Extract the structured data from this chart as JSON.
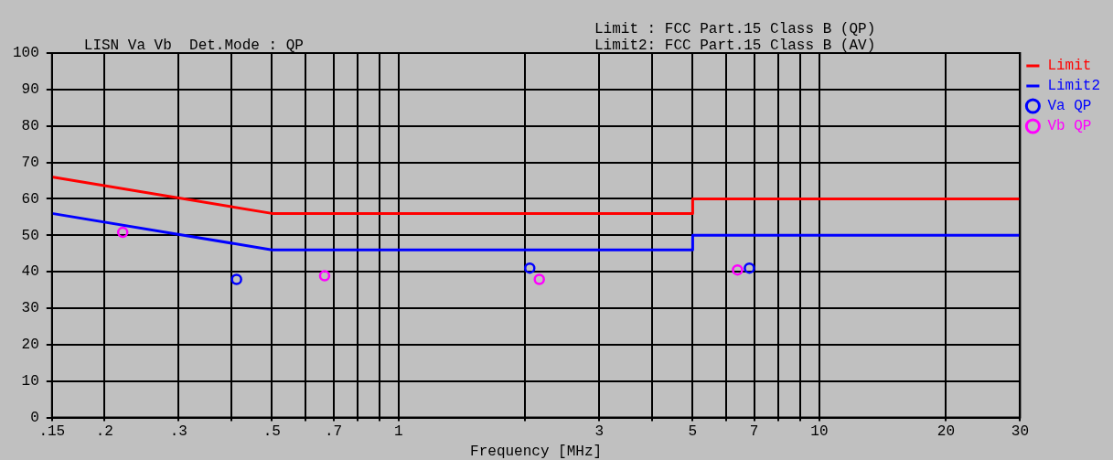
{
  "chart_data": {
    "type": "line",
    "title": "LISN Va Vb  Det.Mode : QP",
    "annotations": [
      "Limit : FCC Part.15 Class B (QP)",
      "Limit2: FCC Part.15 Class B (AV)"
    ],
    "xlabel": "Frequency [MHz]",
    "log": "x",
    "grid": true,
    "legend": "right",
    "xlim": [
      0.15,
      30
    ],
    "xticks": [
      {
        "value": 0.15,
        "label": ".15"
      },
      {
        "value": 0.2,
        "label": ".2"
      },
      {
        "value": 0.3,
        "label": ".3"
      },
      {
        "value": 0.4,
        "label": null
      },
      {
        "value": 0.5,
        "label": ".5"
      },
      {
        "value": 0.6,
        "label": null
      },
      {
        "value": 0.7,
        "label": ".7"
      },
      {
        "value": 0.8,
        "label": null
      },
      {
        "value": 0.9,
        "label": null
      },
      1,
      {
        "value": 2,
        "label": null
      },
      3,
      {
        "value": 4,
        "label": null
      },
      5,
      {
        "value": 6,
        "label": null
      },
      7,
      {
        "value": 8,
        "label": null
      },
      {
        "value": 9,
        "label": null
      },
      10,
      20,
      30
    ],
    "ylim": [
      0,
      100
    ],
    "yticks": [
      0,
      10,
      20,
      30,
      40,
      50,
      60,
      70,
      80,
      90,
      100
    ],
    "series": [
      {
        "name": "Limit",
        "marker": "none",
        "color": "#ff0000",
        "x": [
          0.15,
          0.5,
          5,
          5,
          30
        ],
        "values": [
          66,
          56,
          56,
          60,
          60
        ]
      },
      {
        "name": "Limit2",
        "marker": "none",
        "color": "#0000ff",
        "x": [
          0.15,
          0.5,
          5,
          5,
          30
        ],
        "values": [
          56,
          46,
          46,
          50,
          50
        ]
      },
      {
        "name": "Va QP",
        "type": "scatter",
        "marker": "circle",
        "color": "#0000ff",
        "x": [
          0.412,
          2.05,
          6.82
        ],
        "values": [
          37.9,
          41.0,
          41.0
        ]
      },
      {
        "name": "Vb QP",
        "type": "scatter",
        "marker": "circle",
        "color": "#ff00ff",
        "x": [
          0.221,
          0.667,
          2.16,
          6.39
        ],
        "values": [
          50.8,
          38.9,
          37.9,
          40.5
        ]
      }
    ]
  }
}
